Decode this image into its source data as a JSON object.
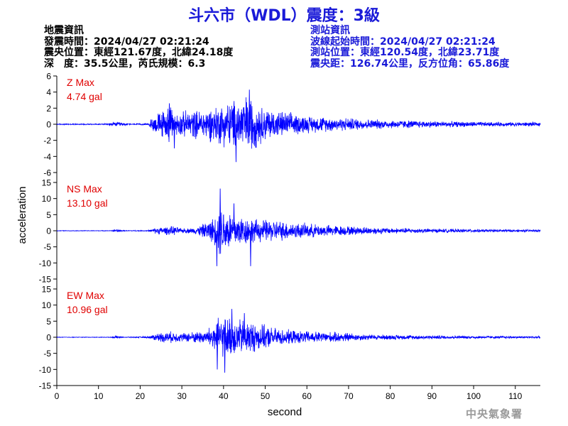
{
  "title": "斗六市（WDL）震度：3級",
  "quake_info": {
    "heading": "地震資訊",
    "origin_time": "發震時間：2024/04/27 02:21:24",
    "epicenter": "震央位置：東經121.67度，北緯24.18度",
    "depth_magnitude": "深　度：35.5公里，芮氏規模：6.3"
  },
  "station_info": {
    "heading": "測站資訊",
    "wave_start": "波線起始時間：2024/04/27 02:21:24",
    "location": "測站位置：東經120.54度，北緯23.71度",
    "distance": "震央距：126.74公里，反方位角：65.86度"
  },
  "footer": {
    "organization": "中央氣象署"
  },
  "colors": {
    "title": "#1a1ad8",
    "trace": "#0000ff",
    "max_label": "#e00000"
  },
  "chart_data": {
    "type": "line",
    "xlabel": "second",
    "ylabel": "acceleration",
    "xlim": [
      0,
      116
    ],
    "xticks": [
      0,
      10,
      20,
      30,
      40,
      50,
      60,
      70,
      80,
      90,
      100,
      110
    ],
    "grid": false,
    "panels": [
      {
        "name": "Z",
        "max_label": "Z Max",
        "max_value": "4.74 gal",
        "ylim": [
          -6,
          6
        ],
        "yticks": [
          6,
          4,
          2,
          0,
          -2,
          -4,
          -6
        ],
        "envelope": {
          "t": [
            0,
            12,
            13,
            15,
            17,
            22,
            23,
            25,
            27,
            29,
            31,
            34,
            37,
            40,
            43,
            46,
            49,
            52,
            56,
            60,
            65,
            70,
            75,
            80,
            85,
            90,
            95,
            100,
            105,
            110,
            116
          ],
          "amp": [
            0.08,
            0.08,
            0.3,
            0.3,
            0.1,
            0.1,
            1.2,
            1.8,
            2.6,
            1.5,
            1.9,
            2.0,
            2.4,
            3.0,
            3.5,
            4.2,
            2.6,
            2.0,
            1.6,
            1.2,
            1.0,
            0.9,
            0.7,
            0.6,
            0.55,
            0.45,
            0.4,
            0.35,
            0.3,
            0.3,
            0.28
          ]
        },
        "peaks": [
          {
            "t": 46.2,
            "v": 4.3
          },
          {
            "t": 43.0,
            "v": -4.7
          },
          {
            "t": 27.0,
            "v": 2.6
          },
          {
            "t": 28.2,
            "v": -3.0
          }
        ]
      },
      {
        "name": "NS",
        "max_label": "NS Max",
        "max_value": "13.10 gal",
        "ylim": [
          -15,
          15
        ],
        "yticks": [
          15,
          10,
          5,
          0,
          -5,
          -10,
          -15
        ],
        "envelope": {
          "t": [
            0,
            13,
            14,
            15,
            16,
            22,
            24,
            26,
            28,
            30,
            33,
            36,
            38,
            39,
            41,
            43,
            45,
            48,
            52,
            56,
            60,
            65,
            70,
            75,
            80,
            85,
            90,
            95,
            100,
            105,
            110,
            116
          ],
          "amp": [
            0.1,
            0.1,
            0.5,
            0.5,
            0.12,
            0.2,
            1.2,
            1.4,
            1.6,
            0.8,
            1.0,
            3.0,
            5.0,
            9.0,
            7.5,
            6.0,
            5.0,
            4.0,
            3.8,
            3.0,
            2.5,
            2.0,
            1.6,
            1.3,
            1.0,
            0.9,
            0.75,
            0.65,
            0.55,
            0.5,
            0.45,
            0.4
          ]
        },
        "peaks": [
          {
            "t": 39.2,
            "v": 13.1
          },
          {
            "t": 38.4,
            "v": -11.0
          },
          {
            "t": 46.5,
            "v": -11.0
          },
          {
            "t": 42.5,
            "v": 8.5
          }
        ]
      },
      {
        "name": "EW",
        "max_label": "EW Max",
        "max_value": "10.96 gal",
        "ylim": [
          -15,
          15
        ],
        "yticks": [
          15,
          10,
          5,
          0,
          -5,
          -10,
          -15
        ],
        "envelope": {
          "t": [
            0,
            13,
            14,
            15,
            16,
            22,
            24,
            27,
            30,
            33,
            36,
            38,
            40,
            43,
            46,
            50,
            54,
            58,
            62,
            66,
            70,
            72,
            75,
            80,
            85,
            90,
            95,
            100,
            105,
            110,
            116
          ],
          "amp": [
            0.1,
            0.1,
            0.5,
            0.5,
            0.12,
            0.3,
            1.5,
            2.0,
            1.5,
            2.0,
            2.5,
            6.0,
            7.0,
            6.5,
            6.0,
            4.0,
            2.8,
            2.2,
            2.0,
            1.8,
            1.6,
            1.2,
            1.0,
            0.85,
            0.75,
            0.65,
            0.55,
            0.5,
            0.45,
            0.4,
            0.38
          ]
        },
        "peaks": [
          {
            "t": 40.3,
            "v": -11.0
          },
          {
            "t": 42.0,
            "v": 8.8
          },
          {
            "t": 38.5,
            "v": -10.0
          },
          {
            "t": 45.0,
            "v": 7.5
          }
        ]
      }
    ]
  }
}
